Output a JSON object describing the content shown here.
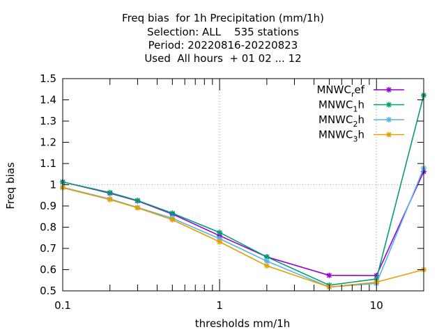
{
  "chart_data": {
    "type": "line",
    "title": [
      "Freq bias  for 1h Precipitation (mm/1h)",
      "Selection: ALL    535 stations",
      "Period: 20220816-20220823",
      "Used  All hours  + 01 02 ... 12"
    ],
    "xlabel": "thresholds mm/1h",
    "ylabel": "Freq bias",
    "xscale": "log",
    "xlim": [
      0.1,
      20
    ],
    "ylim": [
      0.5,
      1.5
    ],
    "x_ticks": [
      0.1,
      1,
      10
    ],
    "x_tick_labels": [
      "0.1",
      "1",
      "10"
    ],
    "y_ticks": [
      0.5,
      0.6,
      0.7,
      0.8,
      0.9,
      1.0,
      1.1,
      1.2,
      1.3,
      1.4,
      1.5
    ],
    "y_tick_labels": [
      "0.5",
      "0.6",
      "0.7",
      "0.8",
      "0.9",
      "1",
      "1.1",
      "1.2",
      "1.3",
      "1.4",
      "1.5"
    ],
    "grid": "dotted at major log ticks",
    "legend_position": "top-right",
    "x": [
      0.1,
      0.2,
      0.3,
      0.5,
      1,
      2,
      5,
      10,
      20
    ],
    "series": [
      {
        "name": "MNWC",
        "sub": "r",
        "suffix": "ef",
        "color": "#9400d3",
        "values": [
          1.013,
          0.96,
          0.924,
          0.862,
          0.76,
          0.66,
          0.573,
          0.572,
          1.062
        ]
      },
      {
        "name": "MNWC",
        "sub": "1",
        "suffix": "h",
        "color": "#009e73",
        "values": [
          1.013,
          0.963,
          0.926,
          0.866,
          0.775,
          0.66,
          0.527,
          0.556,
          1.422
        ]
      },
      {
        "name": "MNWC",
        "sub": "2",
        "suffix": "h",
        "color": "#56b4e9",
        "values": [
          0.988,
          0.933,
          0.893,
          0.842,
          0.746,
          0.64,
          0.518,
          0.535,
          1.078
        ]
      },
      {
        "name": "MNWC",
        "sub": "3",
        "suffix": "h",
        "color": "#e69f00",
        "values": [
          0.986,
          0.93,
          0.891,
          0.835,
          0.731,
          0.618,
          0.518,
          0.541,
          0.6
        ]
      }
    ]
  }
}
